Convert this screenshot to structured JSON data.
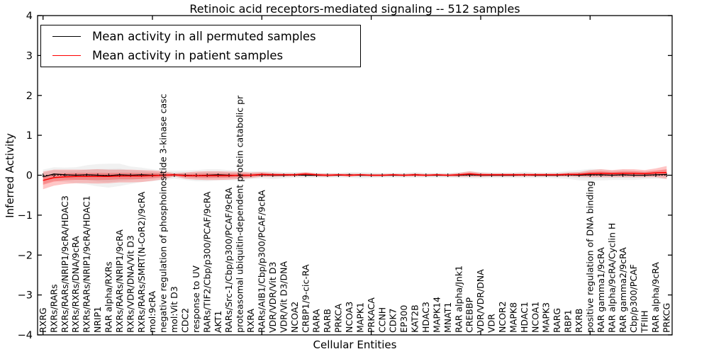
{
  "figure": {
    "title": "Retinoic acid receptors-mediated signaling -- 512 samples",
    "xlabel": "Cellular Entities",
    "ylabel": "Inferred Activity"
  },
  "chart_data": {
    "type": "line",
    "title": "Retinoic acid receptors-mediated signaling -- 512 samples",
    "xlabel": "Cellular Entities",
    "ylabel": "Inferred Activity",
    "ylim": [
      -4,
      4
    ],
    "yticks": [
      4,
      3,
      2,
      1,
      0,
      -1,
      -2,
      -3,
      -4
    ],
    "ytick_labels": [
      "4",
      "3",
      "2",
      "1",
      "0",
      "−1",
      "−2",
      "−3",
      "−4"
    ],
    "top_bottom_tick_positions": [
      0,
      10,
      20,
      30,
      40,
      50
    ],
    "grid": false,
    "legend_position": "upper left",
    "zero_line": {
      "style": "dotted",
      "color": "#000000",
      "point_markers": true
    },
    "categories": [
      "RXRG",
      "RXRs/RARs",
      "RXRs/RARs/NRIP1/9cRA/HDAC3",
      "RXRs/RXRs/DNA/9cRA",
      "RXRs/RARs/NRIP1/9cRA/HDAC1",
      "NRIP1",
      "RAR alpha/RXRs",
      "RXRs/RARs/NRIP1/9cRA",
      "RXRs/VDR/DNA/Vit D3",
      "RXRs/RARs/SMRT(N-CoR2)/9cRA",
      "mol:9cRA",
      "negative regulation of phosphoinositide 3-kinase casc",
      "mol:Vit D3",
      "CDC2",
      "response to UV",
      "RARs/TIF2/Cbp/p300/PCAF/9cRA",
      "AKT1",
      "RARs/Src-1/Cbp/p300/PCAF/9cRA",
      "proteasomal ubiquitin-dependent protein catabolic pr",
      "RXRA",
      "RARs/AIB1/Cbp/p300/PCAF/9cRA",
      "VDR/VDR/Vit D3",
      "VDR/Vit D3/DNA",
      "NCOA2",
      "CRBP1/9-cic-RA",
      "RARA",
      "RARB",
      "PRKCA",
      "NCOA3",
      "MAPK1",
      "PRKACA",
      "CCNH",
      "CDK7",
      "EP300",
      "KAT2B",
      "HDAC3",
      "MAPK14",
      "MNAT1",
      "RAR alpha/Jnk1",
      "CREBBP",
      "VDR/VDR/DNA",
      "VDR",
      "NCOR2",
      "MAPK8",
      "HDAC1",
      "NCOA1",
      "MAPK3",
      "RARG",
      "RBP1",
      "RXRB",
      "positive regulation of DNA binding",
      "RAR gamma1/9cRA",
      "RAR alpha/9cRA/Cyclin H",
      "RAR gamma2/9cRA",
      "Cbp/p300/PCAF",
      "TFIIH",
      "RAR alpha/9cRA",
      "PRKCG"
    ],
    "series": [
      {
        "name": "Mean activity in all permuted samples",
        "color": "#000000",
        "values": [
          -0.04,
          0.03,
          0.01,
          0.0,
          0.01,
          0.0,
          -0.01,
          0.01,
          0.0,
          0.01,
          0.0,
          0.0,
          0.01,
          0.0,
          -0.01,
          0.0,
          0.01,
          0.0,
          -0.01,
          0.0,
          0.01,
          0.0,
          0.0,
          0.01,
          0.0,
          0.0,
          0.0,
          0.0,
          0.01,
          0.0,
          0.0,
          0.0,
          0.0,
          0.0,
          0.01,
          0.0,
          0.0,
          0.0,
          0.0,
          0.01,
          0.0,
          0.0,
          0.0,
          0.0,
          0.01,
          0.0,
          0.0,
          0.0,
          0.01,
          0.0,
          0.01,
          0.01,
          0.0,
          0.01,
          0.0,
          0.0,
          0.01,
          0.02
        ]
      },
      {
        "name": "Mean activity in patient samples",
        "color": "#ff0000",
        "values": [
          -0.13,
          -0.06,
          -0.04,
          -0.03,
          -0.03,
          -0.03,
          -0.03,
          -0.02,
          -0.02,
          -0.02,
          -0.01,
          0.0,
          0.01,
          -0.01,
          -0.01,
          -0.01,
          -0.01,
          -0.01,
          0.0,
          0.0,
          0.02,
          0.01,
          0.01,
          0.01,
          0.03,
          0.01,
          0.0,
          0.01,
          0.0,
          0.01,
          0.0,
          0.0,
          0.01,
          0.0,
          0.01,
          0.0,
          0.01,
          0.0,
          0.01,
          0.03,
          0.01,
          0.01,
          0.01,
          0.01,
          0.01,
          0.01,
          0.01,
          0.01,
          0.02,
          0.02,
          0.04,
          0.05,
          0.04,
          0.05,
          0.05,
          0.04,
          0.06,
          0.07
        ]
      }
    ],
    "bands": [
      {
        "name": "permuted-samples-std-band",
        "series_index": 0,
        "color": "#999999",
        "alpha": 0.25,
        "half_width": [
          0.18,
          0.17,
          0.18,
          0.2,
          0.24,
          0.28,
          0.3,
          0.28,
          0.22,
          0.18,
          0.15,
          0.12,
          0.1,
          0.12,
          0.14,
          0.15,
          0.14,
          0.13,
          0.12,
          0.1,
          0.09,
          0.1,
          0.08,
          0.07,
          0.07,
          0.06,
          0.06,
          0.06,
          0.07,
          0.08,
          0.07,
          0.06,
          0.06,
          0.06,
          0.07,
          0.06,
          0.06,
          0.06,
          0.07,
          0.09,
          0.08,
          0.07,
          0.07,
          0.07,
          0.08,
          0.07,
          0.07,
          0.08,
          0.1,
          0.13,
          0.15,
          0.14,
          0.12,
          0.13,
          0.12,
          0.1,
          0.1,
          0.12
        ]
      },
      {
        "name": "patient-samples-std-band",
        "series_index": 1,
        "color": "#ff0000",
        "alpha": 0.3,
        "half_width": [
          0.22,
          0.2,
          0.18,
          0.17,
          0.17,
          0.18,
          0.17,
          0.16,
          0.16,
          0.15,
          0.13,
          0.1,
          0.04,
          0.08,
          0.1,
          0.11,
          0.11,
          0.1,
          0.09,
          0.07,
          0.06,
          0.05,
          0.04,
          0.04,
          0.05,
          0.04,
          0.04,
          0.03,
          0.04,
          0.03,
          0.03,
          0.03,
          0.03,
          0.03,
          0.04,
          0.03,
          0.03,
          0.03,
          0.05,
          0.07,
          0.05,
          0.04,
          0.04,
          0.04,
          0.04,
          0.04,
          0.04,
          0.04,
          0.05,
          0.06,
          0.09,
          0.1,
          0.09,
          0.1,
          0.1,
          0.09,
          0.11,
          0.16
        ]
      }
    ]
  }
}
